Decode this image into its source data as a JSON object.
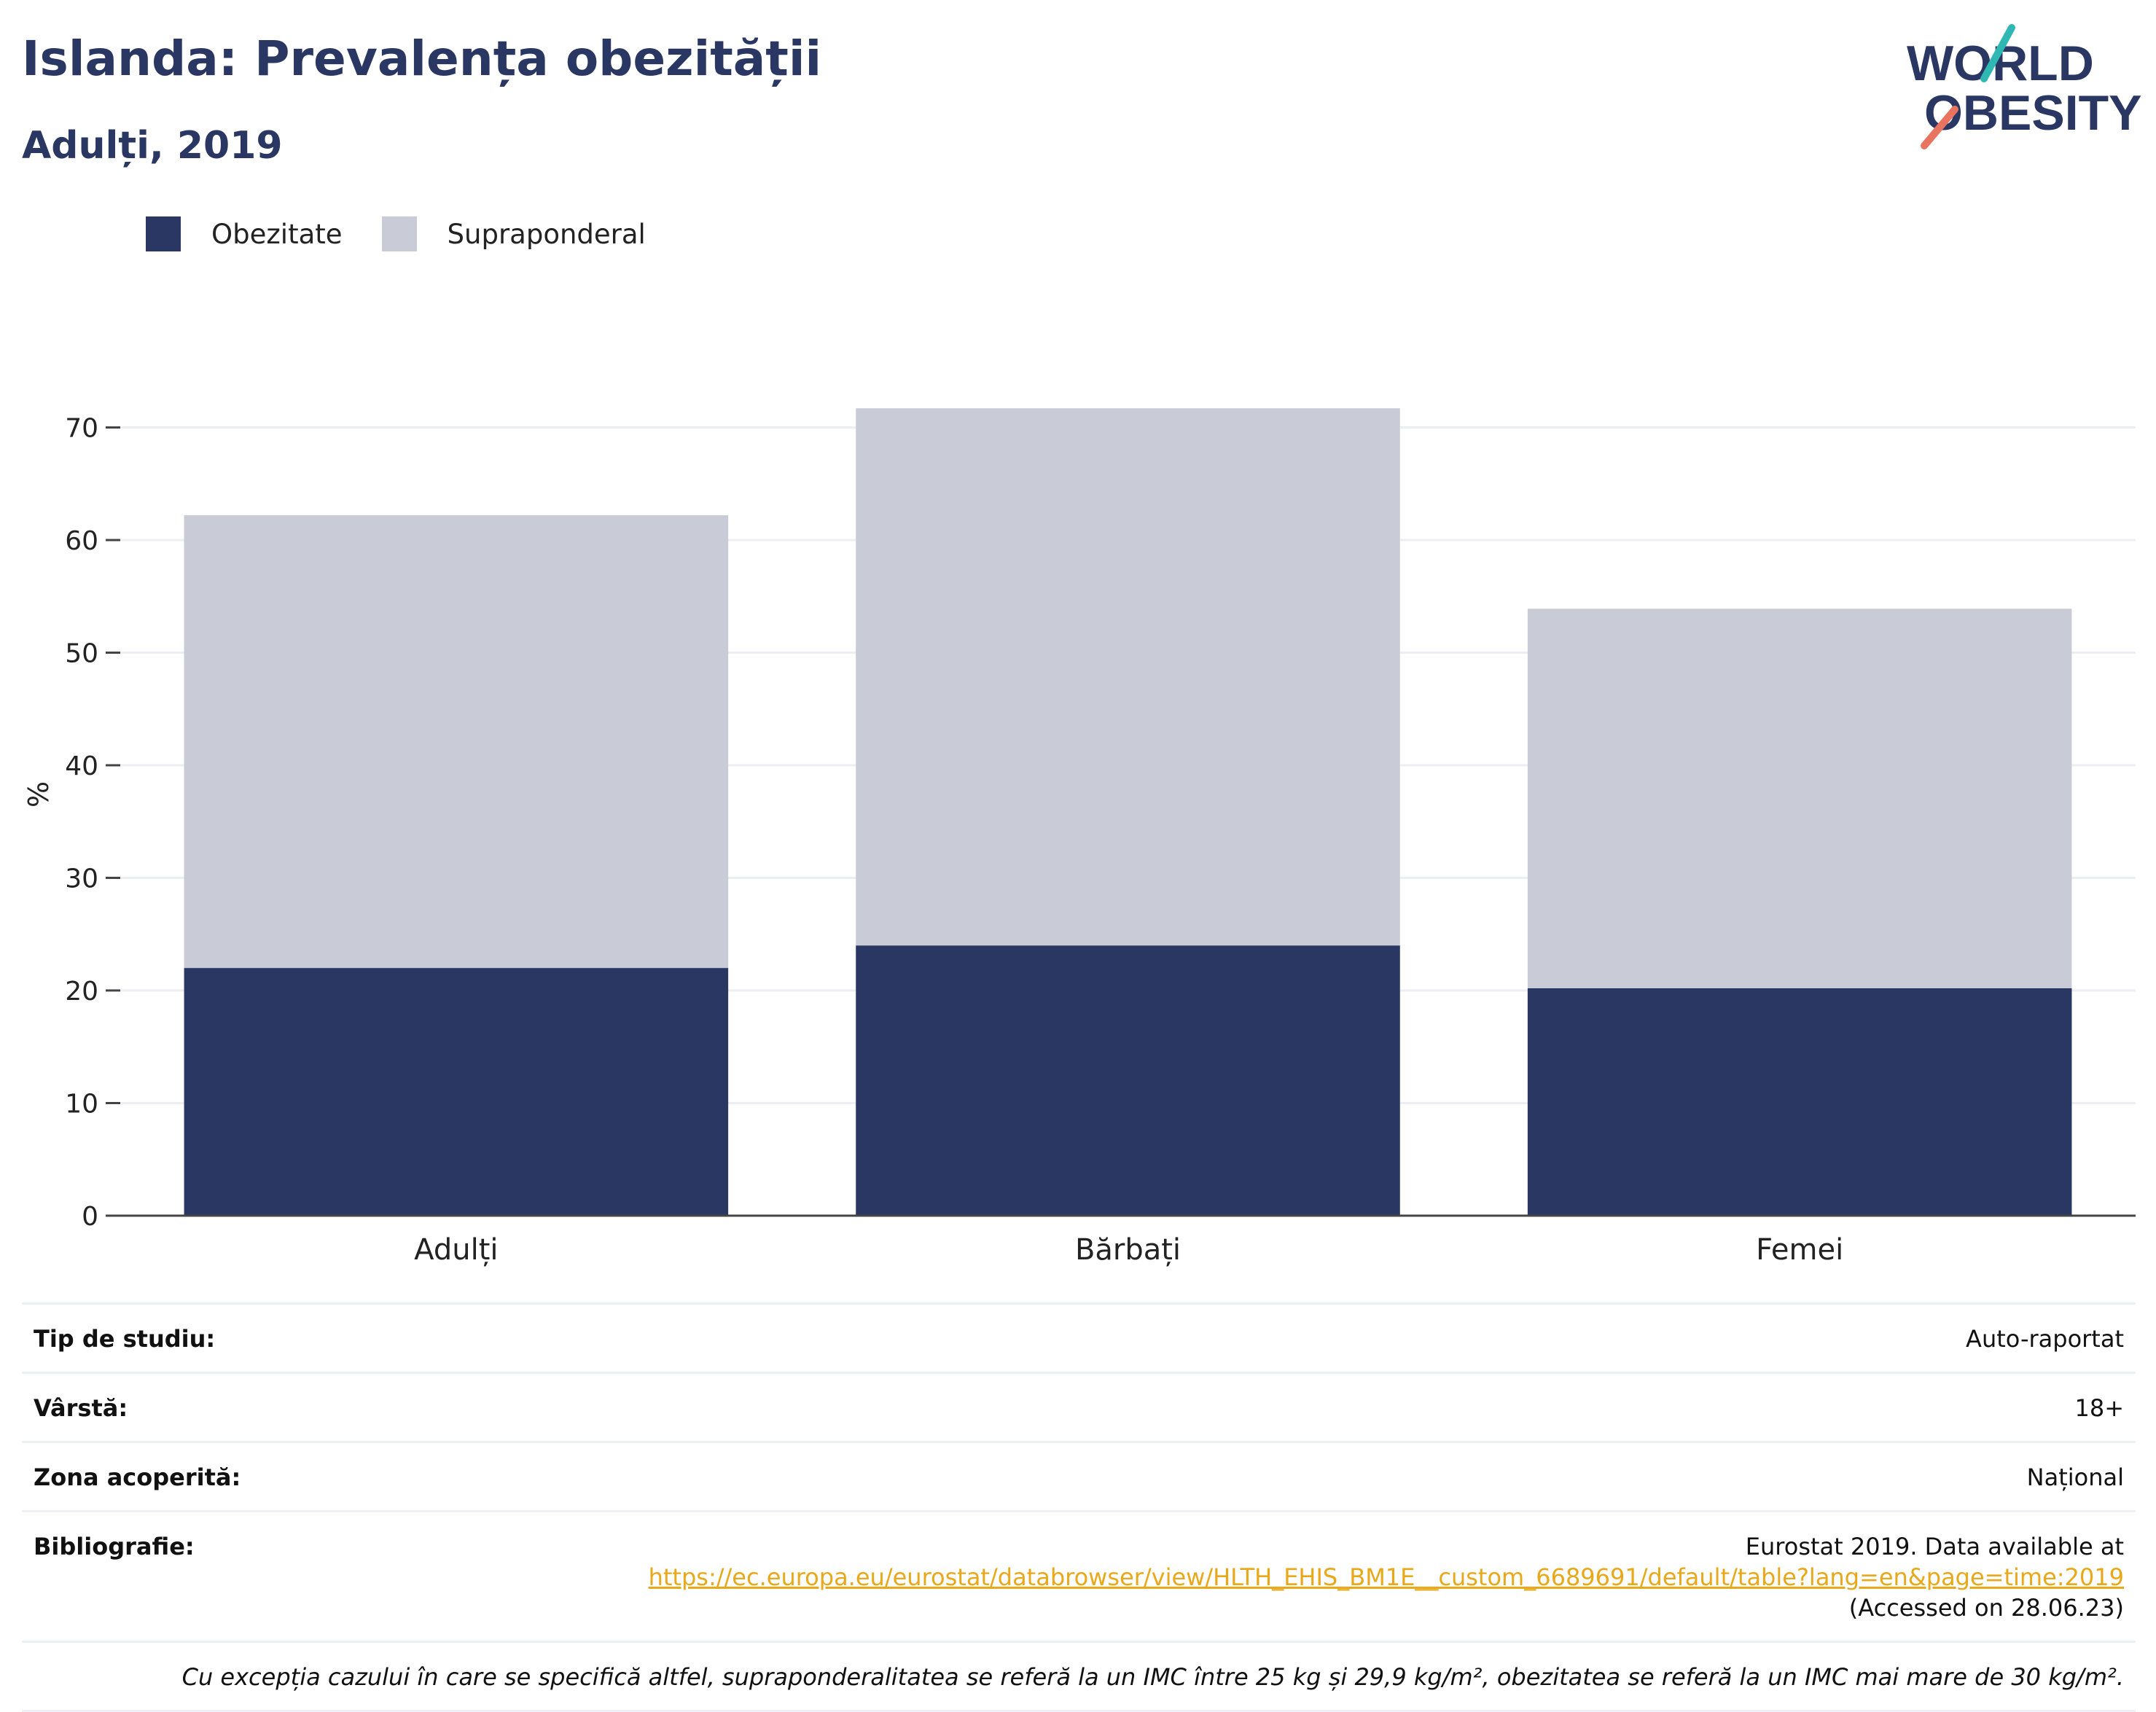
{
  "header": {
    "title": "Islanda: Prevalența obezității",
    "subtitle": "Adulți, 2019"
  },
  "logo": {
    "line1": "WORLD",
    "line2": "OBESITY"
  },
  "colors": {
    "obesity": "#2a3763",
    "overweight": "#c9cbd6",
    "title": "#2a3763",
    "link": "#e8a81a",
    "logo_teal": "#2fb8b3",
    "logo_coral": "#e8735e"
  },
  "chart_data": {
    "type": "bar",
    "stacked": true,
    "categories": [
      "Adulți",
      "Bărbați",
      "Femei"
    ],
    "series": [
      {
        "name": "Obezitate",
        "values": [
          22.0,
          24.0,
          20.2
        ]
      },
      {
        "name": "Supraponderal",
        "values": [
          40.2,
          47.7,
          33.7
        ]
      }
    ],
    "ylabel": "%",
    "ylim": [
      0,
      75
    ],
    "yticks": [
      0,
      10,
      20,
      30,
      40,
      50,
      60,
      70
    ],
    "grid": true,
    "legend": "top-left"
  },
  "info": {
    "rows": [
      {
        "label": "Tip de studiu:",
        "value": "Auto-raportat"
      },
      {
        "label": "Vârstă:",
        "value": "18+"
      },
      {
        "label": "Zona acoperită:",
        "value": "Național"
      }
    ],
    "bibliography": {
      "label": "Bibliografie:",
      "text": "Eurostat 2019. Data available at",
      "link": "https://ec.europa.eu/eurostat/databrowser/view/HLTH_EHIS_BM1E__custom_6689691/default/table?lang=en&page=time:2019",
      "accessed": "(Accessed on 28.06.23)"
    },
    "footnote": "Cu excepția cazului în care se specifică altfel, supraponderalitatea se referă la un IMC între 25 kg și 29,9 kg/m², obezitatea se referă la un IMC mai mare de 30 kg/m²."
  }
}
